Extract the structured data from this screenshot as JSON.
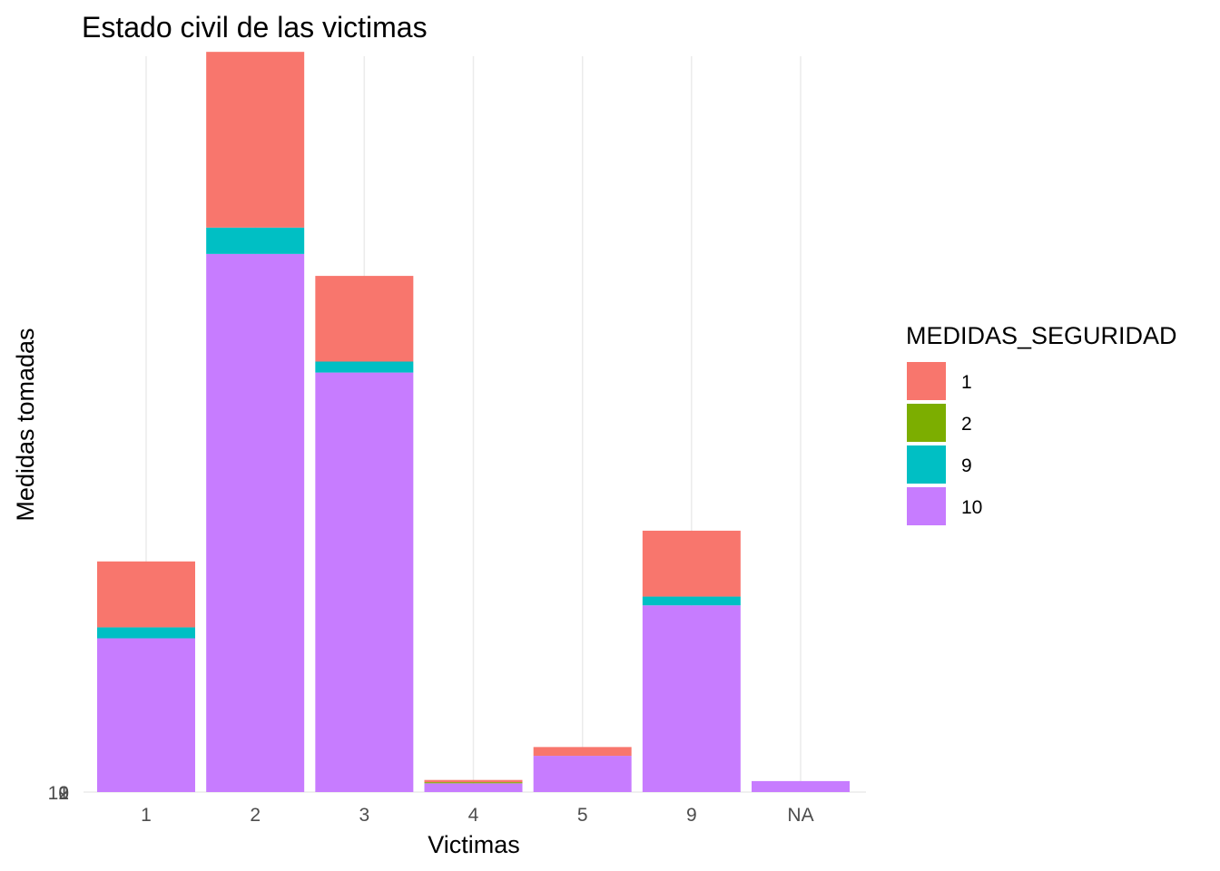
{
  "chart_data": {
    "type": "bar",
    "stacked": true,
    "title": "Estado civil de las victimas",
    "xlabel": "Victimas",
    "ylabel": "Medidas tomadas",
    "categories": [
      "1",
      "2",
      "3",
      "4",
      "5",
      "9",
      "NA"
    ],
    "y_tick_labels": [
      "10",
      "9",
      "2",
      "1"
    ],
    "ylim": [
      0,
      67
    ],
    "grid": "vertical-only",
    "legend": {
      "title": "MEDIDAS_SEGURIDAD",
      "position": "right"
    },
    "series": [
      {
        "name": "10",
        "color": "#C77CFF",
        "values": [
          14,
          49,
          38.2,
          0.8,
          3.3,
          17,
          1
        ]
      },
      {
        "name": "9",
        "color": "#00BFC4",
        "values": [
          1,
          2.4,
          1,
          0,
          0,
          0.8,
          0
        ]
      },
      {
        "name": "2",
        "color": "#7CAE00",
        "values": [
          0,
          0,
          0,
          0.1,
          0,
          0,
          0
        ]
      },
      {
        "name": "1",
        "color": "#F8766D",
        "values": [
          6,
          16,
          7.8,
          0.2,
          0.8,
          6,
          0
        ]
      }
    ],
    "legend_order": [
      "1",
      "2",
      "9",
      "10"
    ]
  }
}
